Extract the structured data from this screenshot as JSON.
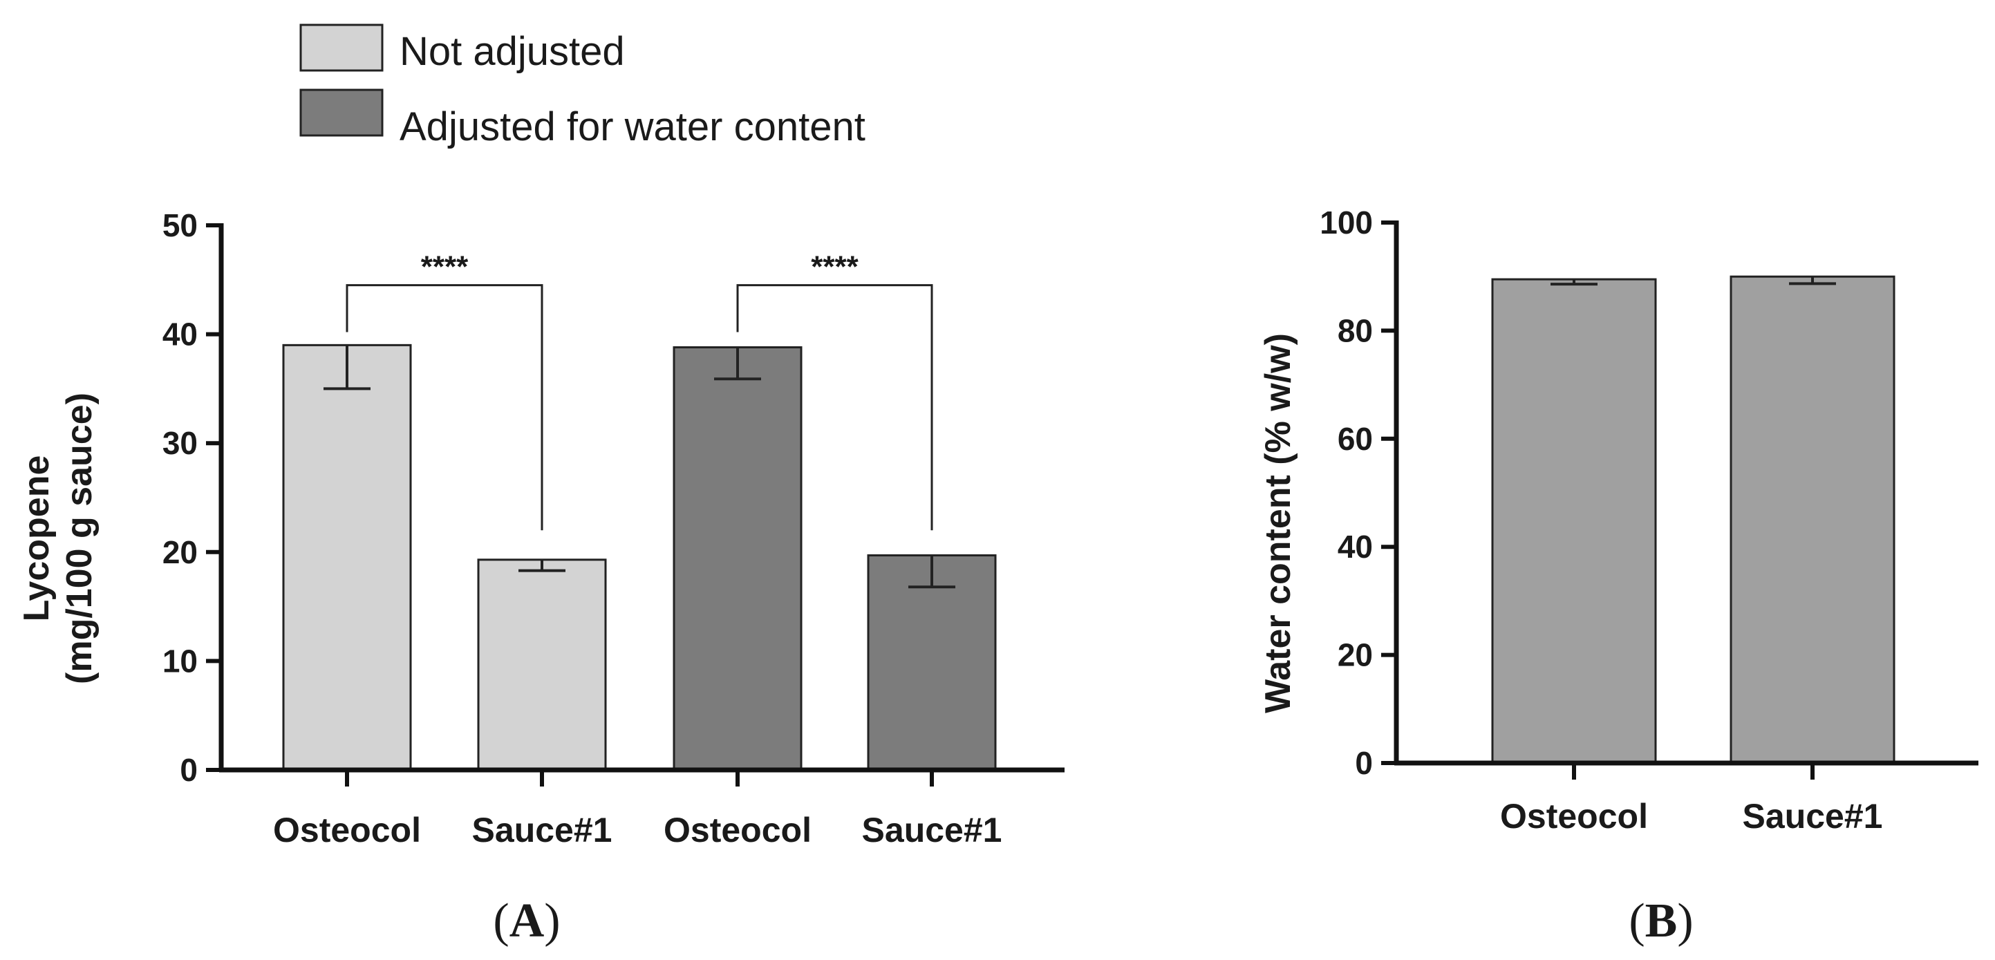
{
  "chart_data": [
    {
      "panel": "A",
      "type": "bar",
      "panel_label": {
        "open": "(",
        "letter": "A",
        "close": ")"
      },
      "ylabel_line1": "Lycopene",
      "ylabel_line2": "(mg/100 g sauce)",
      "xlabel": "",
      "ylim": [
        0,
        50
      ],
      "yticks": [
        0,
        10,
        20,
        30,
        40,
        50
      ],
      "legend": [
        {
          "label": "Not adjusted",
          "color": "#d3d3d3"
        },
        {
          "label": "Adjusted for water content",
          "color": "#7c7c7c"
        }
      ],
      "bars": [
        {
          "category": "Osteocol",
          "series": "Not adjusted",
          "value": 39.0,
          "err_low": 35.0,
          "err_high": 39.0,
          "color": "#d3d3d3"
        },
        {
          "category": "Sauce#1",
          "series": "Not adjusted",
          "value": 19.3,
          "err_low": 18.3,
          "err_high": 19.3,
          "color": "#d3d3d3"
        },
        {
          "category": "Osteocol",
          "series": "Adjusted for water content",
          "value": 38.8,
          "err_low": 35.9,
          "err_high": 38.8,
          "color": "#7c7c7c"
        },
        {
          "category": "Sauce#1",
          "series": "Adjusted for water content",
          "value": 19.7,
          "err_low": 16.8,
          "err_high": 19.7,
          "color": "#7c7c7c"
        }
      ],
      "significance": [
        {
          "from": 0,
          "to": 1,
          "label": "****",
          "y": 44.5,
          "start": 44.5,
          "end": 22
        },
        {
          "from": 2,
          "to": 3,
          "label": "****",
          "y": 44.5,
          "start": 44.5,
          "end": 22
        }
      ]
    },
    {
      "panel": "B",
      "type": "bar",
      "panel_label": {
        "open": "(",
        "letter": "B",
        "close": ")"
      },
      "ylabel": "Water content (% w/w)",
      "xlabel": "",
      "ylim": [
        0,
        100
      ],
      "yticks": [
        0,
        20,
        40,
        60,
        80,
        100
      ],
      "bars": [
        {
          "category": "Osteocol",
          "value": 89.5,
          "err_low": 88.6,
          "err_high": 89.5,
          "color": "#a0a0a0"
        },
        {
          "category": "Sauce#1",
          "value": 90.0,
          "err_low": 88.7,
          "err_high": 90.0,
          "color": "#a0a0a0"
        }
      ]
    }
  ]
}
